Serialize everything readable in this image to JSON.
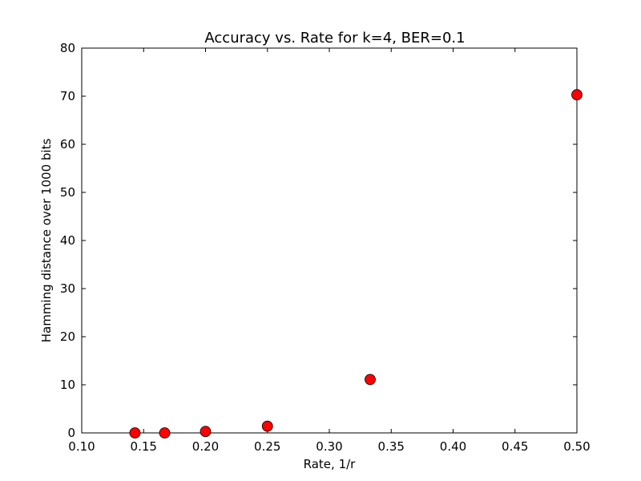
{
  "chart_data": {
    "type": "scatter",
    "title": "Accuracy vs. Rate for k=4, BER=0.1",
    "xlabel": "Rate, 1/r",
    "ylabel": "Hamming distance over 1000 bits",
    "xlim": [
      0.1,
      0.5
    ],
    "ylim": [
      0,
      80
    ],
    "xticks": [
      "0.10",
      "0.15",
      "0.20",
      "0.25",
      "0.30",
      "0.35",
      "0.40",
      "0.45",
      "0.50"
    ],
    "yticks": [
      "0",
      "10",
      "20",
      "30",
      "40",
      "50",
      "60",
      "70",
      "80"
    ],
    "grid": false,
    "marker_color": "#ff0000",
    "series": [
      {
        "points": [
          {
            "x": 0.143,
            "y": 0.0
          },
          {
            "x": 0.167,
            "y": 0.0
          },
          {
            "x": 0.2,
            "y": 0.3
          },
          {
            "x": 0.25,
            "y": 1.4
          },
          {
            "x": 0.333,
            "y": 11.1
          },
          {
            "x": 0.5,
            "y": 70.3
          }
        ]
      }
    ]
  }
}
